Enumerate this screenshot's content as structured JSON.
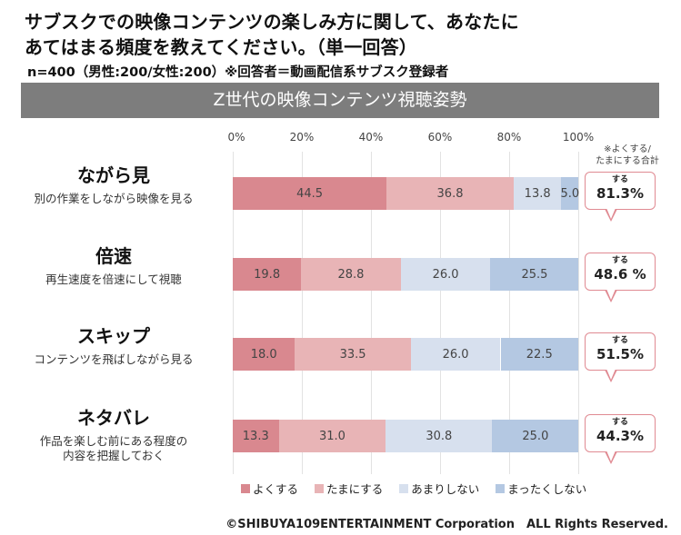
{
  "title_line1": "サブスクでの映像コンテンツの楽しみ方に関して、あなたに",
  "title_line2": "あてはまる頻度を教えてください。（単一回答）",
  "subtitle": "n=400（男性:200/女性:200）※回答者＝動画配信系サブスク登録者",
  "banner": "Z世代の映像コンテンツ視聴姿勢",
  "note_line1": "※よくする/",
  "note_line2": "たまにする合計",
  "footer": "©SHIBUYA109ENTERTAINMENT Corporation　ALL Rights Reserved.",
  "chart_data": {
    "type": "bar",
    "orientation": "horizontal-stacked-100",
    "title": "Z世代の映像コンテンツ視聴姿勢",
    "xlim": [
      0,
      100
    ],
    "x_ticks": [
      "0%",
      "20%",
      "40%",
      "60%",
      "80%",
      "100%"
    ],
    "grid": true,
    "legend_position": "bottom",
    "categories": [
      {
        "title": "ながら見",
        "desc": [
          "別の作業をしながら映像を見る"
        ],
        "callout_label": "する",
        "callout_value": "81.3%"
      },
      {
        "title": "倍速",
        "desc": [
          "再生速度を倍速にして視聴"
        ],
        "callout_label": "する",
        "callout_value": "48.6 %"
      },
      {
        "title": "スキップ",
        "desc": [
          "コンテンツを飛ばしながら見る"
        ],
        "callout_label": "する",
        "callout_value": "51.5%"
      },
      {
        "title": "ネタバレ",
        "desc": [
          "作品を楽しむ前にある程度の",
          "内容を把握しておく"
        ],
        "callout_label": "する",
        "callout_value": "44.3%"
      }
    ],
    "series": [
      {
        "name": "よくする",
        "color": "#d9888f",
        "values": [
          44.5,
          19.8,
          18.0,
          13.3
        ]
      },
      {
        "name": "たまにする",
        "color": "#e8b4b6",
        "values": [
          36.8,
          28.8,
          33.5,
          31.0
        ]
      },
      {
        "name": "あまりしない",
        "color": "#d7e0ee",
        "values": [
          13.8,
          26.0,
          26.0,
          30.8
        ]
      },
      {
        "name": "まったくしない",
        "color": "#b4c8e2",
        "values": [
          5.0,
          25.5,
          22.5,
          25.0
        ]
      }
    ]
  }
}
